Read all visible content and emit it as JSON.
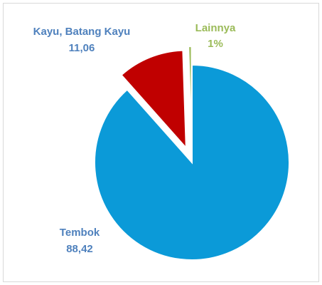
{
  "chart_data": {
    "type": "pie",
    "categories": [
      "Tembok",
      "Kayu, Batang Kayu",
      "Lainnya"
    ],
    "values": [
      88.42,
      11.06,
      0.52
    ],
    "value_labels": [
      "88,42",
      "11,06",
      "1%"
    ],
    "colors": [
      "#0b9ad8",
      "#c00000",
      "#9bbb59"
    ],
    "label_colors": [
      "#4f81bd",
      "#4f81bd",
      "#9bbb59"
    ]
  }
}
